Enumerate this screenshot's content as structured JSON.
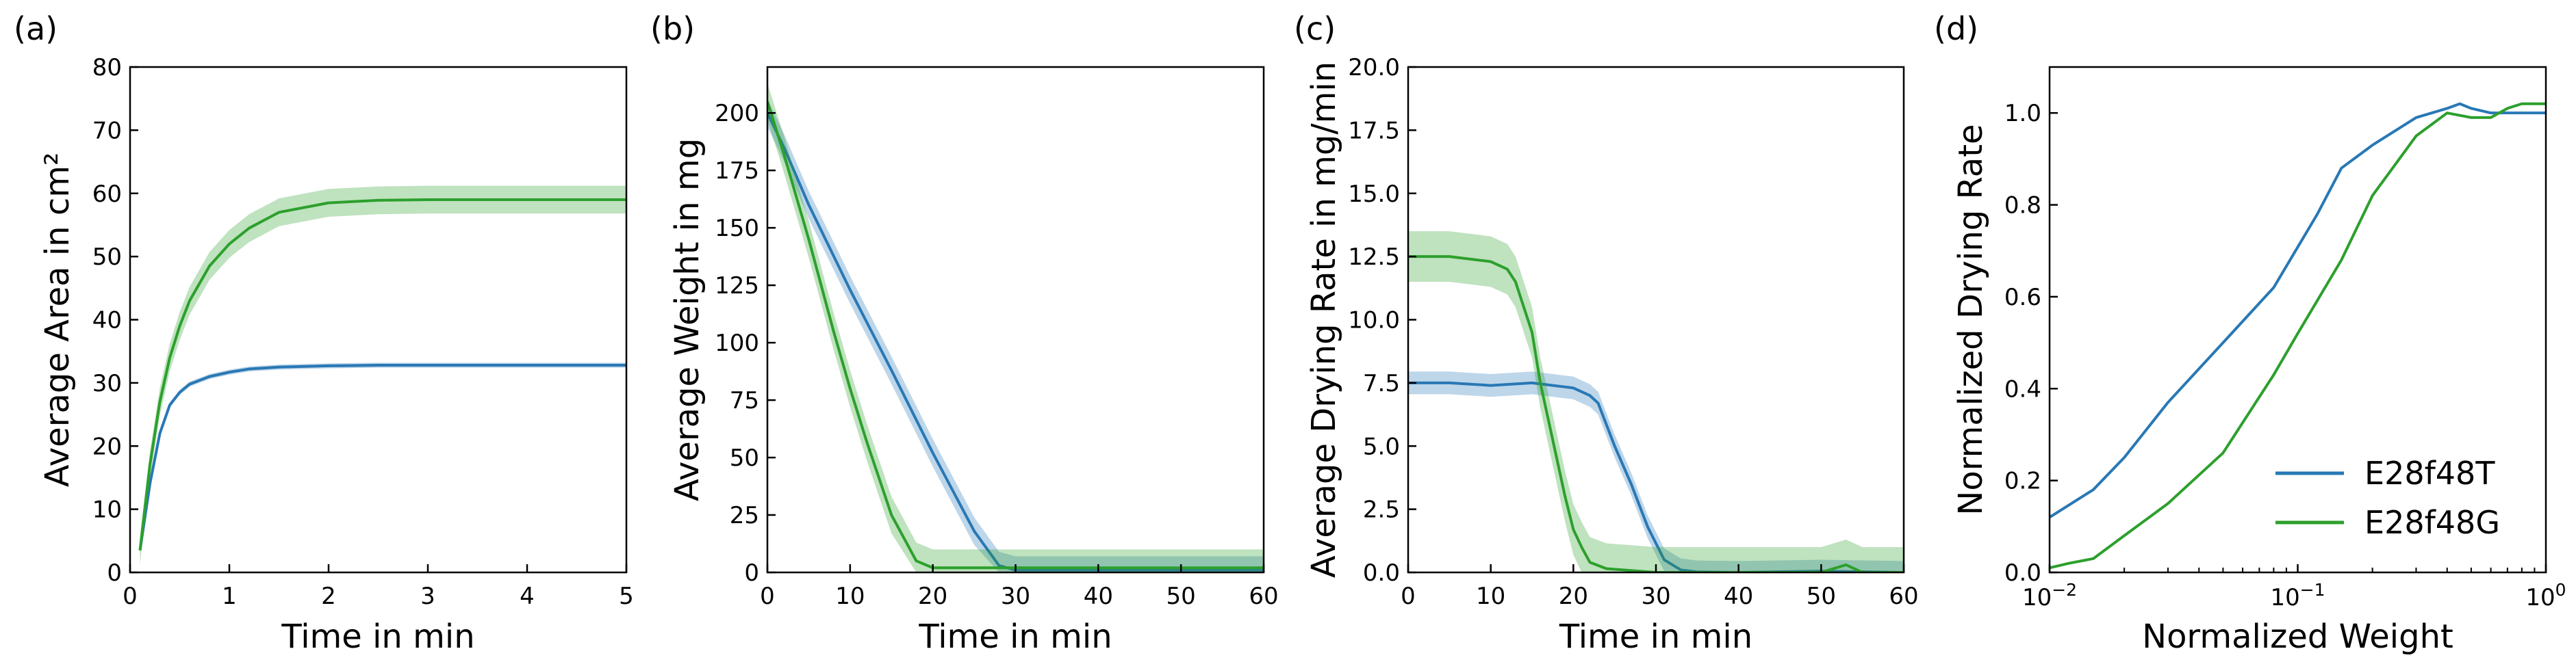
{
  "colors": {
    "blue": "#2878b5",
    "green": "#2ca02c"
  },
  "chart_data": [
    {
      "panel": "(a)",
      "type": "line",
      "xlabel": "Time in min",
      "ylabel": "Average Area in cm²",
      "xlim": [
        0,
        5
      ],
      "ylim": [
        0,
        80
      ],
      "xticks": [
        0,
        1,
        2,
        3,
        4,
        5
      ],
      "yticks": [
        0,
        10,
        20,
        30,
        40,
        50,
        60,
        70,
        80
      ],
      "series": [
        {
          "name": "E28f48T",
          "color": "blue",
          "band": 0.4,
          "x": [
            0.1,
            0.2,
            0.3,
            0.4,
            0.5,
            0.6,
            0.8,
            1.0,
            1.2,
            1.5,
            2.0,
            2.5,
            3.0,
            4.0,
            5.0
          ],
          "y": [
            3.5,
            14,
            22,
            26.5,
            28.5,
            29.8,
            31,
            31.7,
            32.2,
            32.5,
            32.7,
            32.8,
            32.8,
            32.8,
            32.8
          ]
        },
        {
          "name": "E28f48G",
          "color": "green",
          "band": 2.2,
          "x": [
            0.1,
            0.2,
            0.3,
            0.4,
            0.5,
            0.6,
            0.8,
            1.0,
            1.2,
            1.5,
            2.0,
            2.5,
            3.0,
            4.0,
            5.0
          ],
          "y": [
            3.5,
            17,
            27,
            34,
            39,
            43,
            48.5,
            52,
            54.5,
            57,
            58.5,
            58.9,
            59,
            59,
            59
          ]
        }
      ]
    },
    {
      "panel": "(b)",
      "type": "line",
      "xlabel": "Time in min",
      "ylabel": "Average Weight in mg",
      "xlim": [
        0,
        60
      ],
      "ylim": [
        0,
        220
      ],
      "xticks": [
        0,
        10,
        20,
        30,
        40,
        50,
        60
      ],
      "yticks": [
        0,
        25,
        50,
        75,
        100,
        125,
        150,
        175,
        200
      ],
      "series": [
        {
          "name": "E28f48T",
          "color": "blue",
          "band": 6,
          "x": [
            0,
            2,
            5,
            10,
            15,
            20,
            25,
            28,
            30,
            35,
            40,
            50,
            60
          ],
          "y": [
            200,
            185,
            160,
            123,
            88,
            52,
            18,
            3,
            1,
            1,
            1,
            1,
            1
          ]
        },
        {
          "name": "E28f48G",
          "color": "green",
          "band": 8,
          "x": [
            0,
            2,
            5,
            8,
            10,
            12,
            15,
            18,
            20,
            25,
            30,
            40,
            50,
            60
          ],
          "y": [
            205,
            182,
            145,
            105,
            80,
            57,
            25,
            5,
            2,
            2,
            2,
            2,
            2,
            2
          ]
        }
      ]
    },
    {
      "panel": "(c)",
      "type": "line",
      "xlabel": "Time in min",
      "ylabel": "Average Drying Rate in mg/min",
      "xlim": [
        0,
        60
      ],
      "ylim": [
        0,
        20
      ],
      "xticks": [
        0,
        10,
        20,
        30,
        40,
        50,
        60
      ],
      "yticks": [
        0.0,
        2.5,
        5.0,
        7.5,
        10.0,
        12.5,
        15.0,
        17.5,
        20.0
      ],
      "series": [
        {
          "name": "E28f48T",
          "color": "blue",
          "band": 0.45,
          "x": [
            0,
            5,
            10,
            15,
            20,
            22,
            23,
            25,
            27,
            29,
            31,
            33,
            35,
            40,
            50,
            60
          ],
          "y": [
            7.5,
            7.5,
            7.4,
            7.5,
            7.3,
            7.0,
            6.7,
            5.0,
            3.5,
            1.8,
            0.5,
            0.1,
            0.02,
            0,
            0.05,
            0
          ]
        },
        {
          "name": "E28f48G",
          "color": "green",
          "band": 1.0,
          "x": [
            0,
            5,
            10,
            12,
            13,
            15,
            16,
            17,
            18,
            19,
            20,
            21,
            22,
            24,
            30,
            40,
            50,
            53,
            55,
            60
          ],
          "y": [
            12.5,
            12.5,
            12.3,
            12.0,
            11.5,
            9.5,
            7.5,
            6.0,
            4.5,
            3.0,
            1.7,
            1.0,
            0.4,
            0.15,
            0,
            0,
            0,
            0.3,
            0,
            0
          ]
        }
      ]
    },
    {
      "panel": "(d)",
      "type": "line",
      "xlabel": "Normalized Weight",
      "ylabel": "Normalized Drying Rate",
      "xscale": "log",
      "xlim": [
        0.01,
        1
      ],
      "ylim": [
        0,
        1.1
      ],
      "xticks": [
        0.01,
        0.1,
        1
      ],
      "xtick_labels": [
        [
          "10",
          "−2"
        ],
        [
          "10",
          "−1"
        ],
        [
          "10",
          "0"
        ]
      ],
      "yticks": [
        0.0,
        0.2,
        0.4,
        0.6,
        0.8,
        1.0
      ],
      "legend": {
        "position": "lower-right",
        "entries": [
          "E28f48T",
          "E28f48G"
        ]
      },
      "series": [
        {
          "name": "E28f48T",
          "color": "blue",
          "x": [
            0.01,
            0.015,
            0.02,
            0.03,
            0.05,
            0.08,
            0.12,
            0.15,
            0.2,
            0.3,
            0.4,
            0.45,
            0.5,
            0.6,
            0.7,
            0.8,
            1.0
          ],
          "y": [
            0.12,
            0.18,
            0.25,
            0.37,
            0.5,
            0.62,
            0.78,
            0.88,
            0.93,
            0.99,
            1.01,
            1.02,
            1.01,
            1.0,
            1.0,
            1.0,
            1.0
          ]
        },
        {
          "name": "E28f48G",
          "color": "green",
          "x": [
            0.01,
            0.012,
            0.015,
            0.02,
            0.03,
            0.05,
            0.08,
            0.1,
            0.15,
            0.2,
            0.3,
            0.4,
            0.5,
            0.6,
            0.7,
            0.8,
            1.0
          ],
          "y": [
            0.01,
            0.02,
            0.03,
            0.08,
            0.15,
            0.26,
            0.43,
            0.52,
            0.68,
            0.82,
            0.95,
            1.0,
            0.99,
            0.99,
            1.01,
            1.02,
            1.02
          ]
        }
      ]
    }
  ]
}
